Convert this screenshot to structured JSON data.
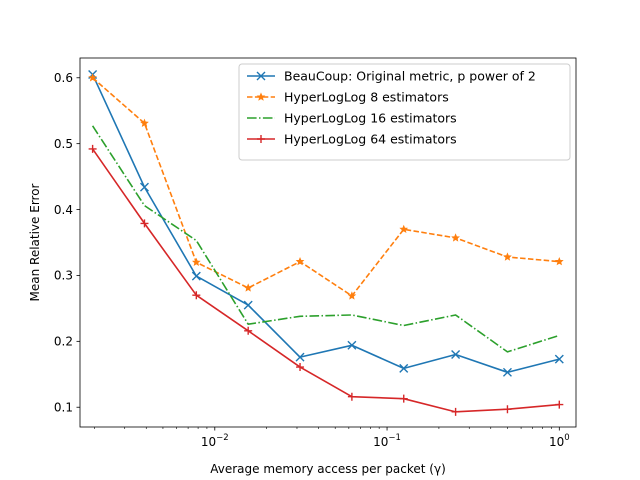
{
  "chart_data": {
    "type": "line",
    "xscale": "log",
    "xlabel": "Average memory access per packet (γ)",
    "ylabel": "Mean Relative Error",
    "xlim": [
      0.00165,
      1.25
    ],
    "ylim": [
      0.07,
      0.63
    ],
    "x_ticks": [
      {
        "value": 0.01,
        "base": "10",
        "exp": "−2"
      },
      {
        "value": 0.1,
        "base": "10",
        "exp": "−1"
      },
      {
        "value": 1,
        "base": "10",
        "exp": "0"
      }
    ],
    "y_ticks": [
      {
        "value": 0.1,
        "label": "0.1"
      },
      {
        "value": 0.2,
        "label": "0.2"
      },
      {
        "value": 0.3,
        "label": "0.3"
      },
      {
        "value": 0.4,
        "label": "0.4"
      },
      {
        "value": 0.5,
        "label": "0.5"
      },
      {
        "value": 0.6,
        "label": "0.6"
      }
    ],
    "grid": false,
    "legend_position": "top-right",
    "x": [
      0.001953125,
      0.00390625,
      0.0078125,
      0.015625,
      0.03125,
      0.0625,
      0.125,
      0.25,
      0.5,
      1
    ],
    "series": [
      {
        "name": "BeauCoup: Original metric, p power of 2",
        "color": "#1f77b4",
        "marker": "x",
        "linestyle": "solid",
        "values": [
          0.605,
          0.434,
          0.299,
          0.255,
          0.176,
          0.194,
          0.159,
          0.18,
          0.153,
          0.173
        ]
      },
      {
        "name": "HyperLogLog 8 estimators",
        "color": "#ff7f0e",
        "marker": "star",
        "linestyle": "dashed",
        "values": [
          0.6,
          0.531,
          0.32,
          0.281,
          0.321,
          0.269,
          0.37,
          0.357,
          0.328,
          0.321
        ]
      },
      {
        "name": "HyperLogLog 16 estimators",
        "color": "#2ca02c",
        "marker": "none",
        "linestyle": "dashdot",
        "values": [
          0.527,
          0.406,
          0.353,
          0.226,
          0.238,
          0.24,
          0.224,
          0.24,
          0.184,
          0.209
        ]
      },
      {
        "name": "HyperLogLog 64 estimators",
        "color": "#d62728",
        "marker": "plus",
        "linestyle": "solid",
        "values": [
          0.492,
          0.379,
          0.27,
          0.216,
          0.161,
          0.116,
          0.113,
          0.093,
          0.097,
          0.104
        ]
      }
    ]
  }
}
